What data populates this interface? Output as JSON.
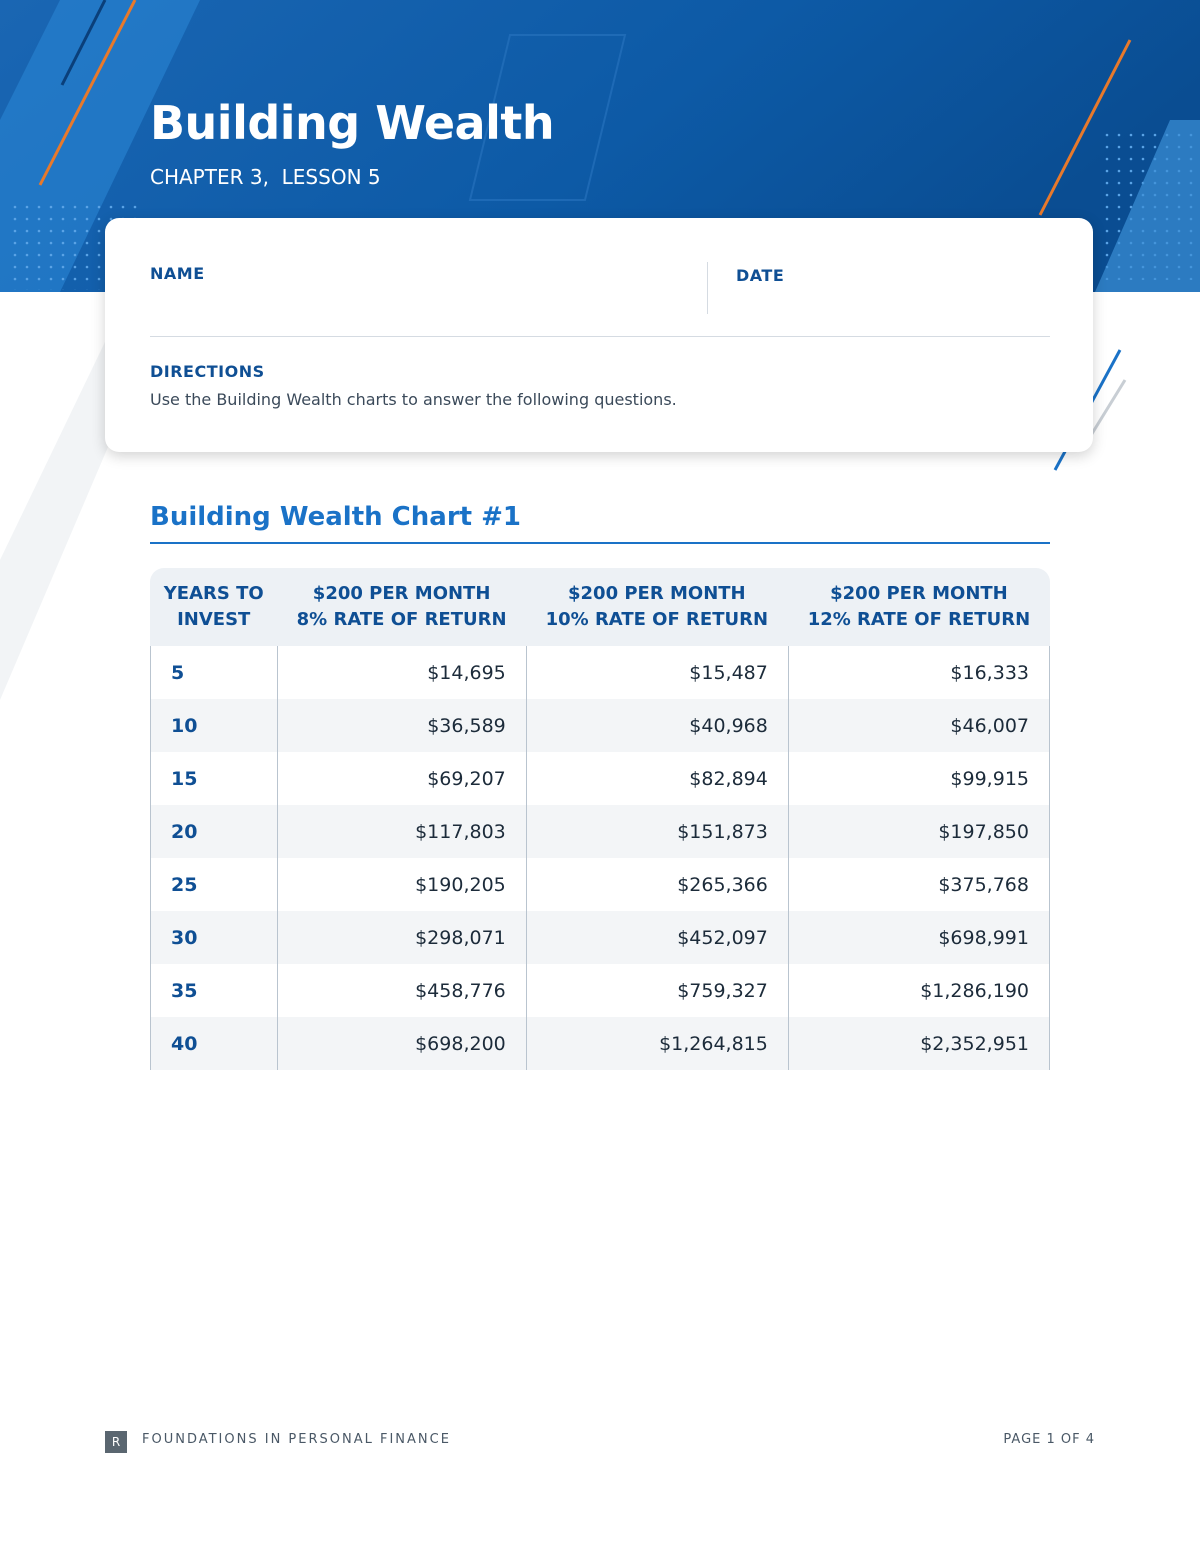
{
  "header": {
    "title": "Building Wealth",
    "subtitle": "CHAPTER 3,  LESSON 5"
  },
  "form": {
    "name_label": "NAME",
    "date_label": "DATE",
    "directions_label": "DIRECTIONS",
    "directions_text": "Use the Building Wealth charts to answer the following questions."
  },
  "section_title": "Building Wealth Chart #1",
  "table": {
    "headers": [
      [
        "YEARS TO",
        "INVEST"
      ],
      [
        "$200 PER MONTH",
        "8% RATE OF RETURN"
      ],
      [
        "$200 PER MONTH",
        "10% RATE OF RETURN"
      ],
      [
        "$200 PER MONTH",
        "12% RATE OF RETURN"
      ]
    ],
    "rows": [
      [
        "5",
        "$14,695",
        "$15,487",
        "$16,333"
      ],
      [
        "10",
        "$36,589",
        "$40,968",
        "$46,007"
      ],
      [
        "15",
        "$69,207",
        "$82,894",
        "$99,915"
      ],
      [
        "20",
        "$117,803",
        "$151,873",
        "$197,850"
      ],
      [
        "25",
        "$190,205",
        "$265,366",
        "$375,768"
      ],
      [
        "30",
        "$298,071",
        "$452,097",
        "$698,991"
      ],
      [
        "35",
        "$458,776",
        "$759,327",
        "$1,286,190"
      ],
      [
        "40",
        "$698,200",
        "$1,264,815",
        "$2,352,951"
      ]
    ]
  },
  "footer": {
    "logo": "R",
    "brand": "FOUNDATIONS IN PERSONAL FINANCE",
    "page": "PAGE 1 OF 4"
  }
}
